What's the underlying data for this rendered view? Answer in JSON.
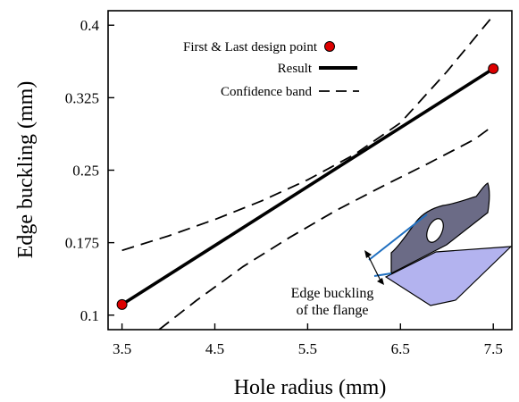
{
  "chart_data": {
    "type": "line",
    "title": "",
    "xlabel": "Hole radius (mm)",
    "ylabel": "Edge buckling (mm)",
    "xlim": [
      3.35,
      7.7
    ],
    "ylim": [
      0.085,
      0.415
    ],
    "xticks": [
      3.5,
      4.5,
      5.5,
      6.5,
      7.5
    ],
    "xtick_labels": [
      "3.5",
      "4.5",
      "5.5",
      "6.5",
      "7.5"
    ],
    "yticks": [
      0.1,
      0.175,
      0.25,
      0.325,
      0.4
    ],
    "ytick_labels": [
      "0.1",
      "0.175",
      "0.25",
      "0.325",
      "0.4"
    ],
    "grid": false,
    "legend_position": "top-left",
    "series": [
      {
        "name": "Result",
        "style": "solid",
        "color": "#000000",
        "x": [
          3.5,
          7.5
        ],
        "y": [
          0.111,
          0.355
        ]
      },
      {
        "name": "Confidence band",
        "style": "dashed",
        "color": "#000000",
        "x": [
          3.5,
          4.0,
          4.5,
          5.0,
          5.5,
          6.0,
          6.5,
          7.0,
          7.5
        ],
        "y": [
          0.167,
          0.182,
          0.199,
          0.218,
          0.24,
          0.266,
          0.299,
          0.352,
          0.41
        ]
      },
      {
        "name": "Confidence band",
        "style": "dashed",
        "color": "#000000",
        "x": [
          3.9,
          4.3,
          4.8,
          5.3,
          5.8,
          6.3,
          6.8,
          7.3,
          7.5
        ],
        "y": [
          0.085,
          0.115,
          0.15,
          0.18,
          0.208,
          0.233,
          0.257,
          0.282,
          0.296
        ]
      },
      {
        "name": "First & Last design point",
        "style": "marker",
        "color": "#dd0000",
        "x": [
          3.5,
          7.5
        ],
        "y": [
          0.111,
          0.355
        ]
      }
    ],
    "legend": {
      "entries": [
        {
          "label": "First & Last design point",
          "symbol": "red-circle-marker"
        },
        {
          "label": "Result",
          "symbol": "solid-thick-line"
        },
        {
          "label": "Confidence band",
          "symbol": "dashed-line"
        }
      ]
    },
    "annotation": {
      "lines": [
        "Edge buckling",
        "of the flange"
      ],
      "illustration": "flange-with-hole-icon"
    },
    "colors": {
      "marker": "#dd0000",
      "plate_fill": "#b3b3ef",
      "flange_fill": "#6b6b86",
      "flange_edge": "#1f6fc0"
    }
  }
}
